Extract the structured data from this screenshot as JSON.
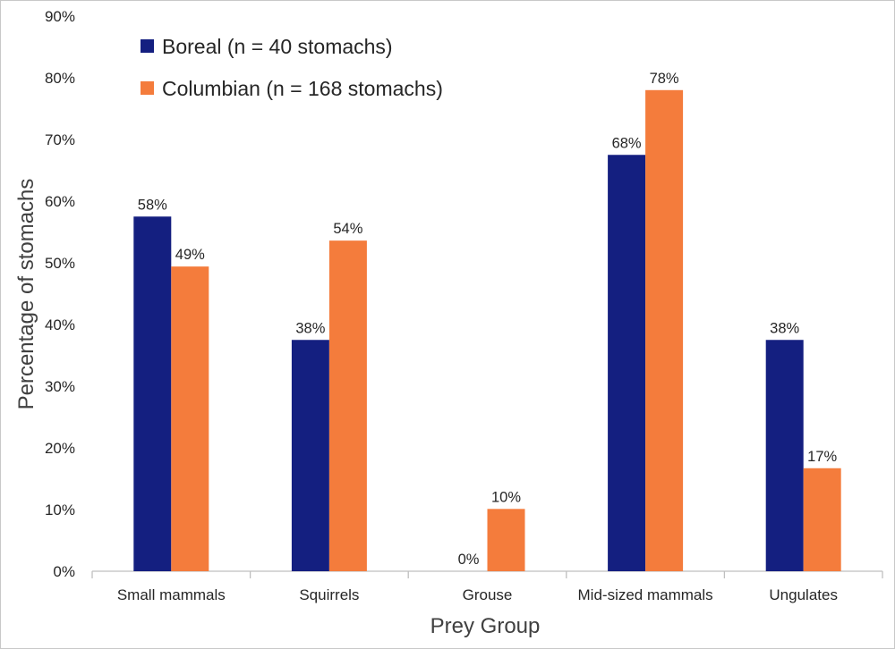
{
  "chart_data": {
    "type": "bar",
    "title": "",
    "xlabel": "Prey Group",
    "ylabel": "Percentage of stomachs",
    "ylim": [
      0,
      90
    ],
    "yticks": [
      0,
      10,
      20,
      30,
      40,
      50,
      60,
      70,
      80,
      90
    ],
    "ytick_labels": [
      "0%",
      "10%",
      "20%",
      "30%",
      "40%",
      "50%",
      "60%",
      "70%",
      "80%",
      "90%"
    ],
    "grid": false,
    "legend_position": "top-left",
    "categories": [
      "Small mammals",
      "Squirrels",
      "Grouse",
      "Mid-sized mammals",
      "Ungulates"
    ],
    "series": [
      {
        "name": "Boreal (n = 40 stomachs)",
        "color": "#141f80",
        "values": [
          57.5,
          37.5,
          0,
          67.5,
          37.5
        ],
        "labels": [
          "58%",
          "38%",
          "0%",
          "68%",
          "38%"
        ]
      },
      {
        "name": "Columbian (n = 168 stomachs)",
        "color": "#f47c3c",
        "values": [
          49.4,
          53.6,
          10.1,
          78.0,
          16.7
        ],
        "labels": [
          "49%",
          "54%",
          "10%",
          "78%",
          "17%"
        ]
      }
    ]
  }
}
